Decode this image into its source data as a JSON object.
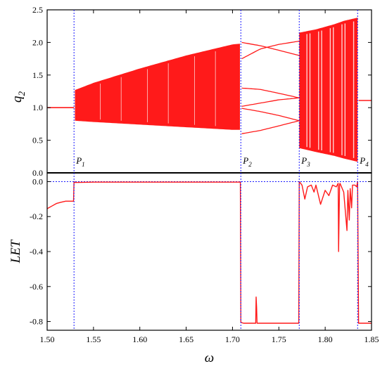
{
  "chart_data": [
    {
      "type": "scatter",
      "panel": "top",
      "ylabel": "q",
      "ylabel_subscript": "2",
      "xlim": [
        1.5,
        1.85
      ],
      "ylim": [
        0.0,
        2.5
      ],
      "yticks": [
        "0.0",
        "0.5",
        "1.0",
        "1.5",
        "2.0",
        "2.5"
      ],
      "grid": false,
      "series_color": "#ff1a1a",
      "series": [
        {
          "kind": "single_branch",
          "x": [
            1.5,
            1.529
          ],
          "y": [
            1.0,
            1.0
          ]
        },
        {
          "kind": "chaotic_band",
          "x": [
            1.53,
            1.55,
            1.6,
            1.65,
            1.7,
            1.708
          ],
          "y_min": [
            0.8,
            0.78,
            0.74,
            0.7,
            0.66,
            0.66
          ],
          "y_max": [
            1.27,
            1.38,
            1.6,
            1.8,
            1.97,
            1.98
          ]
        },
        {
          "kind": "periodic_branches",
          "x": [
            1.71,
            1.73,
            1.75,
            1.772
          ],
          "branches": [
            [
              2.0,
              1.95,
              1.88,
              1.8
            ],
            [
              1.75,
              1.9,
              1.97,
              2.02
            ],
            [
              1.3,
              1.28,
              1.22,
              1.15
            ],
            [
              1.02,
              1.07,
              1.12,
              1.15
            ],
            [
              0.99,
              0.94,
              0.88,
              0.8
            ],
            [
              0.6,
              0.65,
              0.72,
              0.8
            ]
          ]
        },
        {
          "kind": "chaotic_band",
          "x": [
            1.772,
            1.79,
            1.81,
            1.82,
            1.835
          ],
          "y_min": [
            0.38,
            0.32,
            0.26,
            0.22,
            0.17
          ],
          "y_max": [
            2.15,
            2.2,
            2.28,
            2.33,
            2.38
          ]
        },
        {
          "kind": "single_branch",
          "x": [
            1.836,
            1.85
          ],
          "y": [
            1.11,
            1.11
          ]
        }
      ],
      "markers": [
        {
          "label": "P",
          "sub": "1",
          "x": 1.529
        },
        {
          "label": "P",
          "sub": "2",
          "x": 1.709
        },
        {
          "label": "P",
          "sub": "3",
          "x": 1.772
        },
        {
          "label": "P",
          "sub": "4",
          "x": 1.835
        }
      ]
    },
    {
      "type": "line",
      "panel": "bottom",
      "xlabel": "ω",
      "ylabel": "LET",
      "xlim": [
        1.5,
        1.85
      ],
      "ylim": [
        -0.85,
        0.05
      ],
      "xticks": [
        "1.50",
        "1.55",
        "1.60",
        "1.65",
        "1.70",
        "1.75",
        "1.80",
        "1.85"
      ],
      "yticks": [
        "0.0",
        "-0.2",
        "-0.4",
        "-0.6",
        "-0.8"
      ],
      "reference_line_y": 0.0,
      "grid": false,
      "series_color": "#ff1a1a",
      "series": [
        {
          "x": [
            1.5,
            1.505,
            1.51,
            1.515,
            1.52,
            1.525,
            1.5285,
            1.529,
            1.53,
            1.55,
            1.6,
            1.65,
            1.7,
            1.7085,
            1.709,
            1.712,
            1.72,
            1.725,
            1.7255,
            1.726,
            1.7265,
            1.74,
            1.76,
            1.7715,
            1.772,
            1.775,
            1.778,
            1.781,
            1.785,
            1.788,
            1.79,
            1.795,
            1.8,
            1.804,
            1.808,
            1.812,
            1.814,
            1.8145,
            1.8155,
            1.816,
            1.82,
            1.8235,
            1.8245,
            1.826,
            1.827,
            1.8285,
            1.8295,
            1.832,
            1.834,
            1.835,
            1.836,
            1.84,
            1.85
          ],
          "y": [
            -0.155,
            -0.14,
            -0.125,
            -0.118,
            -0.112,
            -0.112,
            -0.112,
            0.0,
            -0.005,
            -0.003,
            -0.003,
            -0.003,
            -0.003,
            -0.003,
            -0.805,
            -0.81,
            -0.81,
            -0.81,
            -0.66,
            -0.72,
            -0.81,
            -0.81,
            -0.81,
            -0.81,
            0.0,
            -0.02,
            -0.1,
            -0.03,
            -0.02,
            -0.06,
            -0.02,
            -0.13,
            -0.05,
            -0.08,
            -0.02,
            -0.03,
            -0.01,
            -0.4,
            -0.02,
            -0.01,
            -0.06,
            -0.28,
            -0.05,
            -0.22,
            -0.04,
            -0.15,
            -0.02,
            -0.02,
            -0.03,
            0.0,
            -0.81,
            -0.81,
            -0.81
          ]
        }
      ]
    }
  ]
}
